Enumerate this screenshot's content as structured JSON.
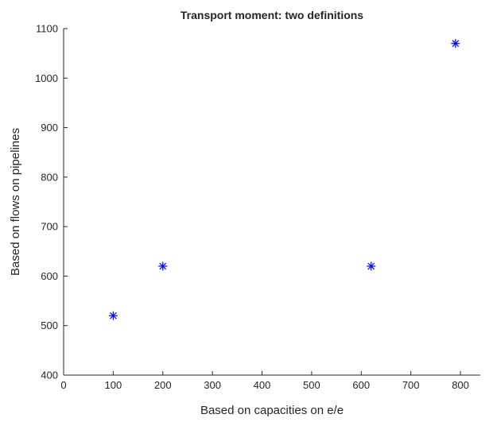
{
  "chart_data": {
    "type": "scatter",
    "title": "Transport moment: two definitions",
    "xlabel": "Based on capacities on e/e",
    "ylabel": "Based on flows on pipelines",
    "xlim": [
      0,
      840
    ],
    "ylim": [
      400,
      1100
    ],
    "xticks": [
      "0",
      "100",
      "200",
      "300",
      "400",
      "500",
      "600",
      "700",
      "800"
    ],
    "yticks": [
      "400",
      "500",
      "600",
      "700",
      "800",
      "900",
      "1000",
      "1100"
    ],
    "grid": false,
    "marker": "asterisk",
    "marker_color": "#0000ff",
    "points": [
      {
        "x": 100,
        "y": 520
      },
      {
        "x": 200,
        "y": 620
      },
      {
        "x": 620,
        "y": 620
      },
      {
        "x": 790,
        "y": 1070
      }
    ]
  }
}
